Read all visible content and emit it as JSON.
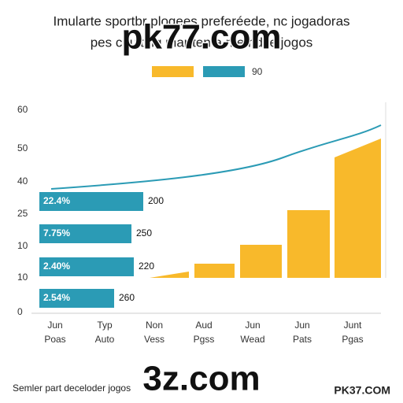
{
  "header": {
    "title_lines": [
      "Imularte sportbr plogees preferéede, nc jogadoras",
      "pes coulting martten a me ndi e jogos"
    ]
  },
  "legend": {
    "label": "90"
  },
  "y_axis_labels": [
    "60",
    "50",
    "40",
    "25",
    "10",
    "10",
    "0"
  ],
  "x_axis_labels": [
    [
      "Jun",
      "Poas"
    ],
    [
      "Typ",
      "Auto"
    ],
    [
      "Non",
      "Vess"
    ],
    [
      "Aud",
      "Pgss"
    ],
    [
      "Jun",
      "Wead"
    ],
    [
      "Jun",
      "Pats"
    ],
    [
      "Junt",
      "Pgas"
    ]
  ],
  "bar_labels": [
    {
      "inside": "22.4%",
      "outside": "200"
    },
    {
      "inside": "7.75%",
      "outside": "250"
    },
    {
      "inside": "2.40%",
      "outside": "220"
    },
    {
      "inside": "2.54%",
      "outside": "260"
    }
  ],
  "footer": {
    "left": "Semler part deceloder jogos",
    "right": "PK37.COM"
  },
  "watermarks": [
    "pk77.com",
    "3z.com"
  ]
}
